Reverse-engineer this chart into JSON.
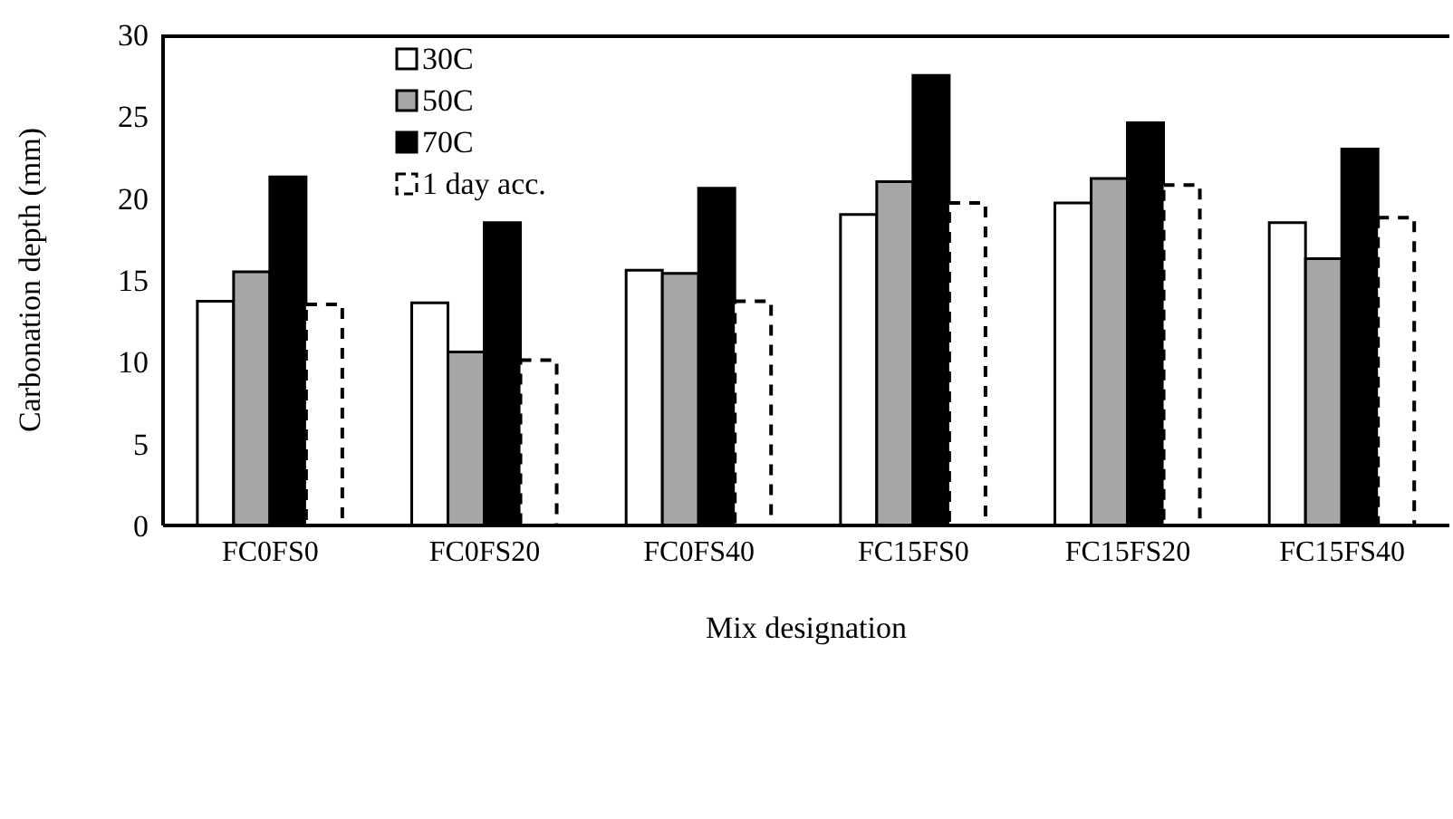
{
  "chart_data": {
    "type": "bar",
    "xlabel": "Mix designation",
    "ylabel": "Carbonation depth (mm)",
    "categories": [
      "FC0FS0",
      "FC0FS20",
      "FC0FS40",
      "FC15FS0",
      "FC15FS20",
      "FC15FS40"
    ],
    "series": [
      {
        "name": "30C",
        "color": "#ffffff",
        "values": [
          13.7,
          13.6,
          15.6,
          19.0,
          19.7,
          18.5
        ]
      },
      {
        "name": "50C",
        "color": "#a6a6a6",
        "values": [
          15.5,
          10.6,
          15.4,
          21.0,
          21.2,
          16.3
        ]
      },
      {
        "name": "70C",
        "color": "#000000",
        "values": [
          21.3,
          18.5,
          20.6,
          27.5,
          24.6,
          23.0
        ]
      },
      {
        "name": "1 day acc.",
        "color": "#ffffff",
        "line_style": "dashed",
        "values": [
          13.5,
          10.1,
          13.7,
          19.7,
          20.8,
          18.8
        ]
      }
    ],
    "ylim": [
      0,
      30
    ],
    "yticks": [
      0,
      5,
      10,
      15,
      20,
      25,
      30
    ],
    "grid": false,
    "legend": "top left"
  }
}
